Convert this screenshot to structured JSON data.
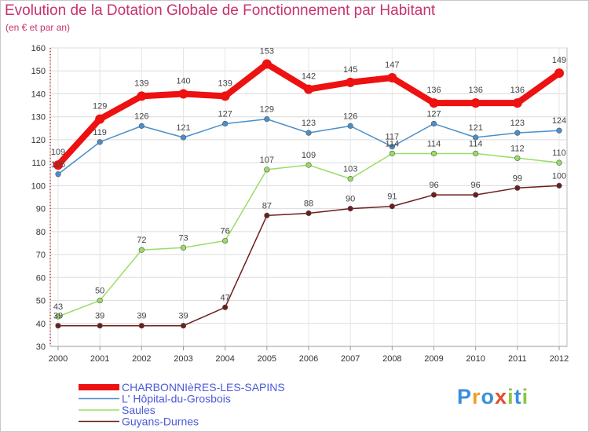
{
  "title": "Evolution de la Dotation Globale de Fonctionnement par Habitant",
  "subtitle": "(en € et par an)",
  "logo": {
    "text": "Proxiti",
    "letters": [
      {
        "ch": "P",
        "color": "#3a8fd8"
      },
      {
        "ch": "r",
        "color": "#f0a020"
      },
      {
        "ch": "o",
        "color": "#3a8fd8"
      },
      {
        "ch": "x",
        "color": "#e84a2a"
      },
      {
        "ch": "i",
        "color": "#8cc63f"
      },
      {
        "ch": "t",
        "color": "#3a8fd8"
      },
      {
        "ch": "i",
        "color": "#8cc63f"
      }
    ]
  },
  "chart_data": {
    "type": "line",
    "x": [
      "2000",
      "2001",
      "2002",
      "2003",
      "2004",
      "2005",
      "2006",
      "2007",
      "2008",
      "2009",
      "2010",
      "2011",
      "2012"
    ],
    "ylim": [
      30,
      160
    ],
    "yticks": [
      30,
      40,
      50,
      60,
      70,
      80,
      90,
      100,
      110,
      120,
      130,
      140,
      150,
      160
    ],
    "grid": true,
    "legend_position": "bottom-left",
    "series": [
      {
        "name": "Guyans-Durnes",
        "color": "#6b1e1e",
        "values": [
          39,
          39,
          39,
          39,
          47,
          87,
          88,
          90,
          91,
          96,
          96,
          99,
          100
        ]
      },
      {
        "name": "Saules",
        "color": "#99dd66",
        "values": [
          43,
          50,
          72,
          73,
          76,
          107,
          109,
          103,
          114,
          114,
          114,
          112,
          110
        ]
      },
      {
        "name": "L' Hôpital-du-Grosbois",
        "color": "#4a8fcc",
        "values": [
          105,
          119,
          126,
          121,
          127,
          129,
          123,
          126,
          117,
          127,
          121,
          123,
          124
        ]
      },
      {
        "name": "CHARBONNIèRES-LES-SAPINS",
        "color": "#ee1111",
        "bold": true,
        "values": [
          109,
          129,
          139,
          140,
          139,
          153,
          142,
          145,
          147,
          136,
          136,
          136,
          149
        ]
      }
    ]
  }
}
